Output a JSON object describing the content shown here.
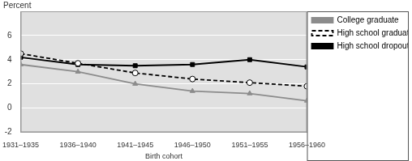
{
  "chart_data": {
    "type": "line",
    "y_label": "Percent",
    "x_label": "Birth cohort",
    "categories": [
      "1931–1935",
      "1936–1940",
      "1941–1945",
      "1946–1950",
      "1951–1955",
      "1956–1960"
    ],
    "series": [
      {
        "name": "College graduate",
        "color": "#8c8c8c",
        "marker": "triangle",
        "line_style": "solid",
        "values": [
          3.6,
          3.0,
          2.0,
          1.4,
          1.2,
          0.6
        ]
      },
      {
        "name": "High school graduate",
        "color": "#000000",
        "marker": "open_circle",
        "line_style": "dashed",
        "values": [
          4.5,
          3.7,
          2.9,
          2.4,
          2.1,
          1.8
        ]
      },
      {
        "name": "High school dropout",
        "color": "#000000",
        "marker": "square",
        "line_style": "solid",
        "values": [
          4.2,
          3.6,
          3.5,
          3.6,
          4.0,
          3.4
        ]
      }
    ],
    "ylim": [
      -2,
      8
    ],
    "yticks": [
      -2,
      0,
      2,
      4,
      6
    ],
    "grid": true,
    "legend": "top right"
  }
}
